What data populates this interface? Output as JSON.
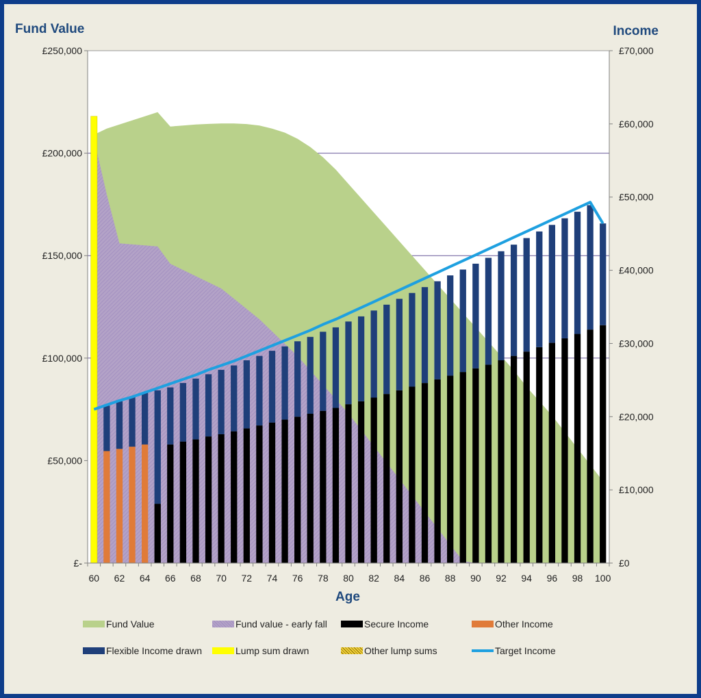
{
  "chart_data": {
    "type": "bar",
    "xlabel": "Age",
    "ylabel_left": "Fund Value",
    "ylabel_right": "Income",
    "x_ticks": [
      "60",
      "62",
      "64",
      "66",
      "68",
      "70",
      "72",
      "74",
      "76",
      "78",
      "80",
      "82",
      "84",
      "86",
      "88",
      "90",
      "92",
      "94",
      "96",
      "98",
      "100"
    ],
    "y_left_ticks": [
      "£-",
      "£50,000",
      "£100,000",
      "£150,000",
      "£200,000",
      "£250,000"
    ],
    "y_right_ticks": [
      "£0",
      "£10,000",
      "£20,000",
      "£30,000",
      "£40,000",
      "£50,000",
      "£60,000",
      "£70,000"
    ],
    "ylim_left": [
      0,
      250000
    ],
    "ylim_right": [
      0,
      70000
    ],
    "gridlines_left": [
      100000,
      150000,
      200000
    ],
    "ages": [
      60,
      61,
      62,
      63,
      64,
      65,
      66,
      67,
      68,
      69,
      70,
      71,
      72,
      73,
      74,
      75,
      76,
      77,
      78,
      79,
      80,
      81,
      82,
      83,
      84,
      85,
      86,
      87,
      88,
      89,
      90,
      91,
      92,
      93,
      94,
      95,
      96,
      97,
      98,
      99,
      100
    ],
    "series": [
      {
        "name": "Fund Value",
        "type": "area",
        "color": "#b9d18b",
        "values": [
          209000,
          212000,
          214000,
          216000,
          218000,
          220000,
          213000,
          213500,
          214000,
          214300,
          214500,
          214500,
          214200,
          213500,
          212000,
          210000,
          207000,
          203000,
          198000,
          192000,
          185000,
          178000,
          171000,
          164000,
          157000,
          150000,
          143000,
          136000,
          129000,
          122000,
          115000,
          108000,
          101000,
          94000,
          86000,
          79000,
          72000,
          64000,
          56000,
          48000,
          40000
        ]
      },
      {
        "name": "Fund value - early fall",
        "type": "area",
        "color": "#b3a2c7",
        "values": [
          207000,
          180000,
          156000,
          155500,
          155000,
          154500,
          146000,
          143000,
          140000,
          137000,
          134000,
          129000,
          124000,
          119000,
          113000,
          107000,
          101000,
          94000,
          87000,
          80000,
          73000,
          65000,
          57000,
          49000,
          41000,
          33000,
          25000,
          17000,
          9000,
          1000,
          0,
          0,
          0,
          0,
          0,
          0,
          0,
          0,
          0,
          0,
          0
        ]
      },
      {
        "name": "Secure Income",
        "type": "bar",
        "color": "#000000",
        "values": [
          0,
          0,
          0,
          0,
          0,
          8100,
          16200,
          16600,
          16900,
          17300,
          17600,
          18000,
          18400,
          18800,
          19200,
          19600,
          20000,
          20400,
          20800,
          21200,
          21700,
          22100,
          22600,
          23100,
          23600,
          24100,
          24600,
          25100,
          25600,
          26100,
          26600,
          27100,
          27700,
          28300,
          28900,
          29500,
          30100,
          30700,
          31300,
          31900,
          32500
        ]
      },
      {
        "name": "Other Income",
        "type": "bar",
        "color": "#e07b39",
        "values": [
          15000,
          15300,
          15600,
          15900,
          16200,
          0,
          0,
          0,
          0,
          0,
          0,
          0,
          0,
          0,
          0,
          0,
          0,
          0,
          0,
          0,
          0,
          0,
          0,
          0,
          0,
          0,
          0,
          0,
          0,
          0,
          0,
          0,
          0,
          0,
          0,
          0,
          0,
          0,
          0,
          0,
          0
        ]
      },
      {
        "name": "Flexible Income drawn",
        "type": "bar",
        "color": "#1f3f7a",
        "values": [
          6000,
          6200,
          6500,
          6800,
          7100,
          15500,
          7800,
          8000,
          8300,
          8500,
          8800,
          9000,
          9300,
          9500,
          9800,
          10000,
          10300,
          10500,
          10800,
          11000,
          11300,
          11600,
          11900,
          12200,
          12500,
          12800,
          13100,
          13400,
          13700,
          14000,
          14300,
          14600,
          14900,
          15200,
          15500,
          15800,
          16100,
          16400,
          16700,
          17000,
          13900
        ]
      },
      {
        "name": "Lump sum drawn",
        "type": "bar",
        "color": "#ffff00",
        "values": [
          218000
        ]
      },
      {
        "name": "Other lump sums",
        "type": "bar",
        "color": "#c9a400",
        "values": []
      },
      {
        "name": "Target Income",
        "type": "line",
        "color": "#1ea0e0",
        "values": [
          21000,
          21600,
          22200,
          22700,
          23300,
          23900,
          24500,
          25100,
          25700,
          26400,
          27000,
          27600,
          28300,
          29000,
          29700,
          30400,
          31100,
          31800,
          32600,
          33300,
          34100,
          34900,
          35700,
          36500,
          37300,
          38100,
          38900,
          39700,
          40500,
          41300,
          42100,
          42900,
          43700,
          44500,
          45300,
          46100,
          46900,
          47700,
          48500,
          49300,
          46400
        ]
      }
    ],
    "legend_position": "bottom"
  }
}
